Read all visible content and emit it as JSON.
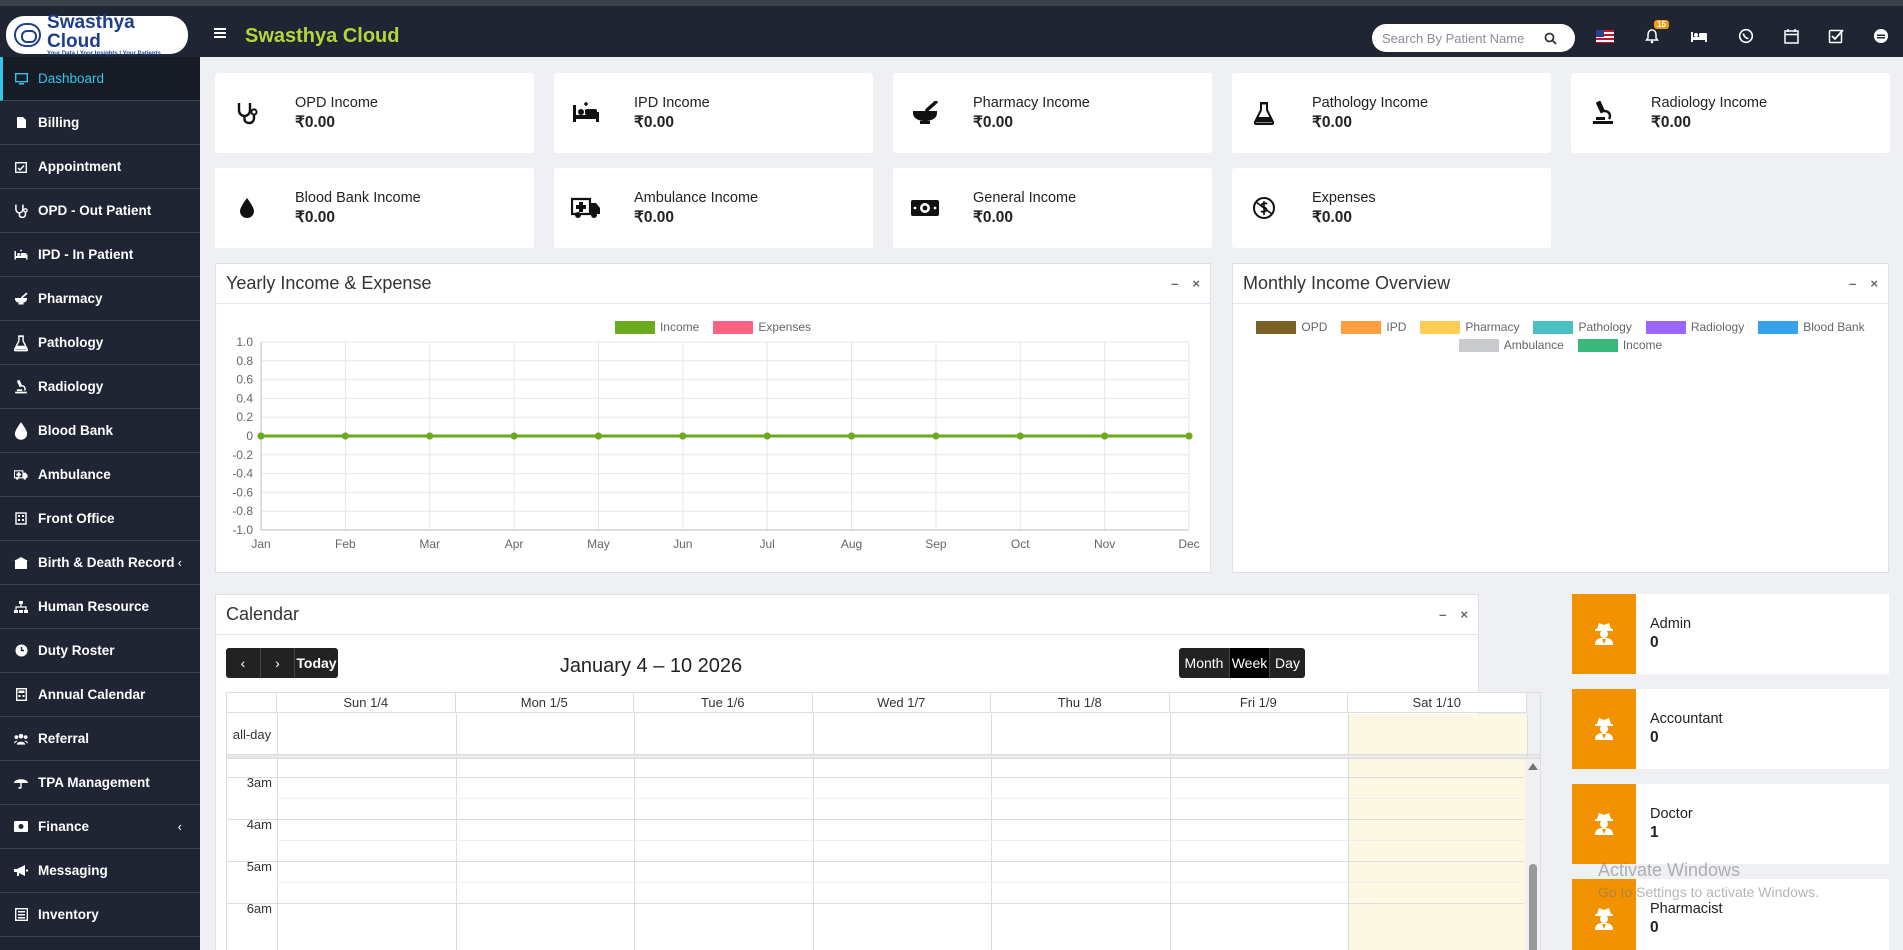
{
  "app": {
    "logo_name": "Swasthya Cloud",
    "logo_tagline": "Your Data | Your Insights | Your Patients",
    "title": "Swasthya Cloud"
  },
  "search": {
    "placeholder": "Search By Patient Name"
  },
  "header_icons": [
    "us-flag-icon",
    "bell-icon",
    "bed-icon",
    "whatsapp-icon",
    "calendar-icon",
    "task-check-icon",
    "user-menu-icon"
  ],
  "notification_count": "15",
  "sidebar": {
    "items": [
      {
        "label": "Dashboard",
        "icon": "monitor-icon",
        "active": true
      },
      {
        "label": "Billing",
        "icon": "file-icon"
      },
      {
        "label": "Appointment",
        "icon": "calendar-check-icon"
      },
      {
        "label": "OPD - Out Patient",
        "icon": "stethoscope-icon"
      },
      {
        "label": "IPD - In Patient",
        "icon": "bed-icon"
      },
      {
        "label": "Pharmacy",
        "icon": "mortar-pestle-icon"
      },
      {
        "label": "Pathology",
        "icon": "flask-icon"
      },
      {
        "label": "Radiology",
        "icon": "microscope-icon"
      },
      {
        "label": "Blood Bank",
        "icon": "tint-icon"
      },
      {
        "label": "Ambulance",
        "icon": "ambulance-icon"
      },
      {
        "label": "Front Office",
        "icon": "building-icon"
      },
      {
        "label": "Birth & Death Record",
        "icon": "family-icon",
        "arrow": "‹"
      },
      {
        "label": "Human Resource",
        "icon": "sitemap-icon"
      },
      {
        "label": "Duty Roster",
        "icon": "clock-icon"
      },
      {
        "label": "Annual Calendar",
        "icon": "calculator-icon"
      },
      {
        "label": "Referral",
        "icon": "users-icon"
      },
      {
        "label": "TPA Management",
        "icon": "umbrella-icon"
      },
      {
        "label": "Finance",
        "icon": "money-icon",
        "arrow": "‹"
      },
      {
        "label": "Messaging",
        "icon": "bullhorn-icon"
      },
      {
        "label": "Inventory",
        "icon": "inventory-icon"
      }
    ]
  },
  "income_cards": [
    {
      "label": "OPD Income",
      "value": "₹0.00",
      "icon": "stethoscope-icon"
    },
    {
      "label": "IPD Income",
      "value": "₹0.00",
      "icon": "bed-icon"
    },
    {
      "label": "Pharmacy Income",
      "value": "₹0.00",
      "icon": "mortar-pestle-icon"
    },
    {
      "label": "Pathology Income",
      "value": "₹0.00",
      "icon": "flask-icon"
    },
    {
      "label": "Radiology Income",
      "value": "₹0.00",
      "icon": "microscope-icon"
    },
    {
      "label": "Blood Bank Income",
      "value": "₹0.00",
      "icon": "tint-icon"
    },
    {
      "label": "Ambulance Income",
      "value": "₹0.00",
      "icon": "ambulance-icon"
    },
    {
      "label": "General Income",
      "value": "₹0.00",
      "icon": "money-bill-icon"
    },
    {
      "label": "Expenses",
      "value": "₹0.00",
      "icon": "expense-icon"
    }
  ],
  "yearly_panel": {
    "title": "Yearly Income & Expense",
    "minimize": "–",
    "close": "×"
  },
  "monthly_panel": {
    "title": "Monthly Income Overview",
    "minimize": "–",
    "close": "×"
  },
  "chart_data": [
    {
      "type": "line",
      "title": "Yearly Income & Expense",
      "x": [
        "Jan",
        "Feb",
        "Mar",
        "Apr",
        "May",
        "Jun",
        "Jul",
        "Aug",
        "Sep",
        "Oct",
        "Nov",
        "Dec"
      ],
      "ylim": [
        -1.0,
        1.0
      ],
      "yticks": [
        "1.0",
        "0.8",
        "0.6",
        "0.4",
        "0.2",
        "0",
        "-0.2",
        "-0.4",
        "-0.6",
        "-0.8",
        "-1.0"
      ],
      "grid": true,
      "legend_position": "top",
      "series": [
        {
          "name": "Income",
          "color": "#6aaa1e",
          "values": [
            0,
            0,
            0,
            0,
            0,
            0,
            0,
            0,
            0,
            0,
            0,
            0
          ]
        },
        {
          "name": "Expenses",
          "color": "#ff6384",
          "values": [
            0,
            0,
            0,
            0,
            0,
            0,
            0,
            0,
            0,
            0,
            0,
            0
          ]
        }
      ]
    },
    {
      "type": "pie",
      "title": "Monthly Income Overview",
      "legend_position": "top",
      "series": [
        {
          "name": "OPD",
          "color": "#7b6126",
          "values": [
            0
          ]
        },
        {
          "name": "IPD",
          "color": "#ff9f40",
          "values": [
            0
          ]
        },
        {
          "name": "Pharmacy",
          "color": "#ffcd56",
          "values": [
            0
          ]
        },
        {
          "name": "Pathology",
          "color": "#4bc0c0",
          "values": [
            0
          ]
        },
        {
          "name": "Radiology",
          "color": "#9966ff",
          "values": [
            0
          ]
        },
        {
          "name": "Blood Bank",
          "color": "#36a2eb",
          "values": [
            0
          ]
        },
        {
          "name": "Ambulance",
          "color": "#c9cbcf",
          "values": [
            0
          ]
        },
        {
          "name": "Income",
          "color": "#3cb77e",
          "values": [
            0
          ]
        }
      ]
    }
  ],
  "calendar": {
    "title": "Calendar",
    "minimize": "–",
    "close": "×",
    "prev": "‹",
    "next": "›",
    "today": "Today",
    "range": "January 4 – 10 2026",
    "views": [
      "Month",
      "Week",
      "Day"
    ],
    "active_view": "Week",
    "days": [
      "Sun 1/4",
      "Mon 1/5",
      "Tue 1/6",
      "Wed 1/7",
      "Thu 1/8",
      "Fri 1/9",
      "Sat 1/10"
    ],
    "allday_label": "all-day",
    "times": [
      "3am",
      "4am",
      "5am",
      "6am"
    ]
  },
  "staff_cards": [
    {
      "label": "Admin",
      "value": "0"
    },
    {
      "label": "Accountant",
      "value": "0"
    },
    {
      "label": "Doctor",
      "value": "1"
    },
    {
      "label": "Pharmacist",
      "value": "0"
    }
  ],
  "watermark": {
    "line1": "Activate Windows",
    "line2": "Go to Settings to activate Windows."
  }
}
